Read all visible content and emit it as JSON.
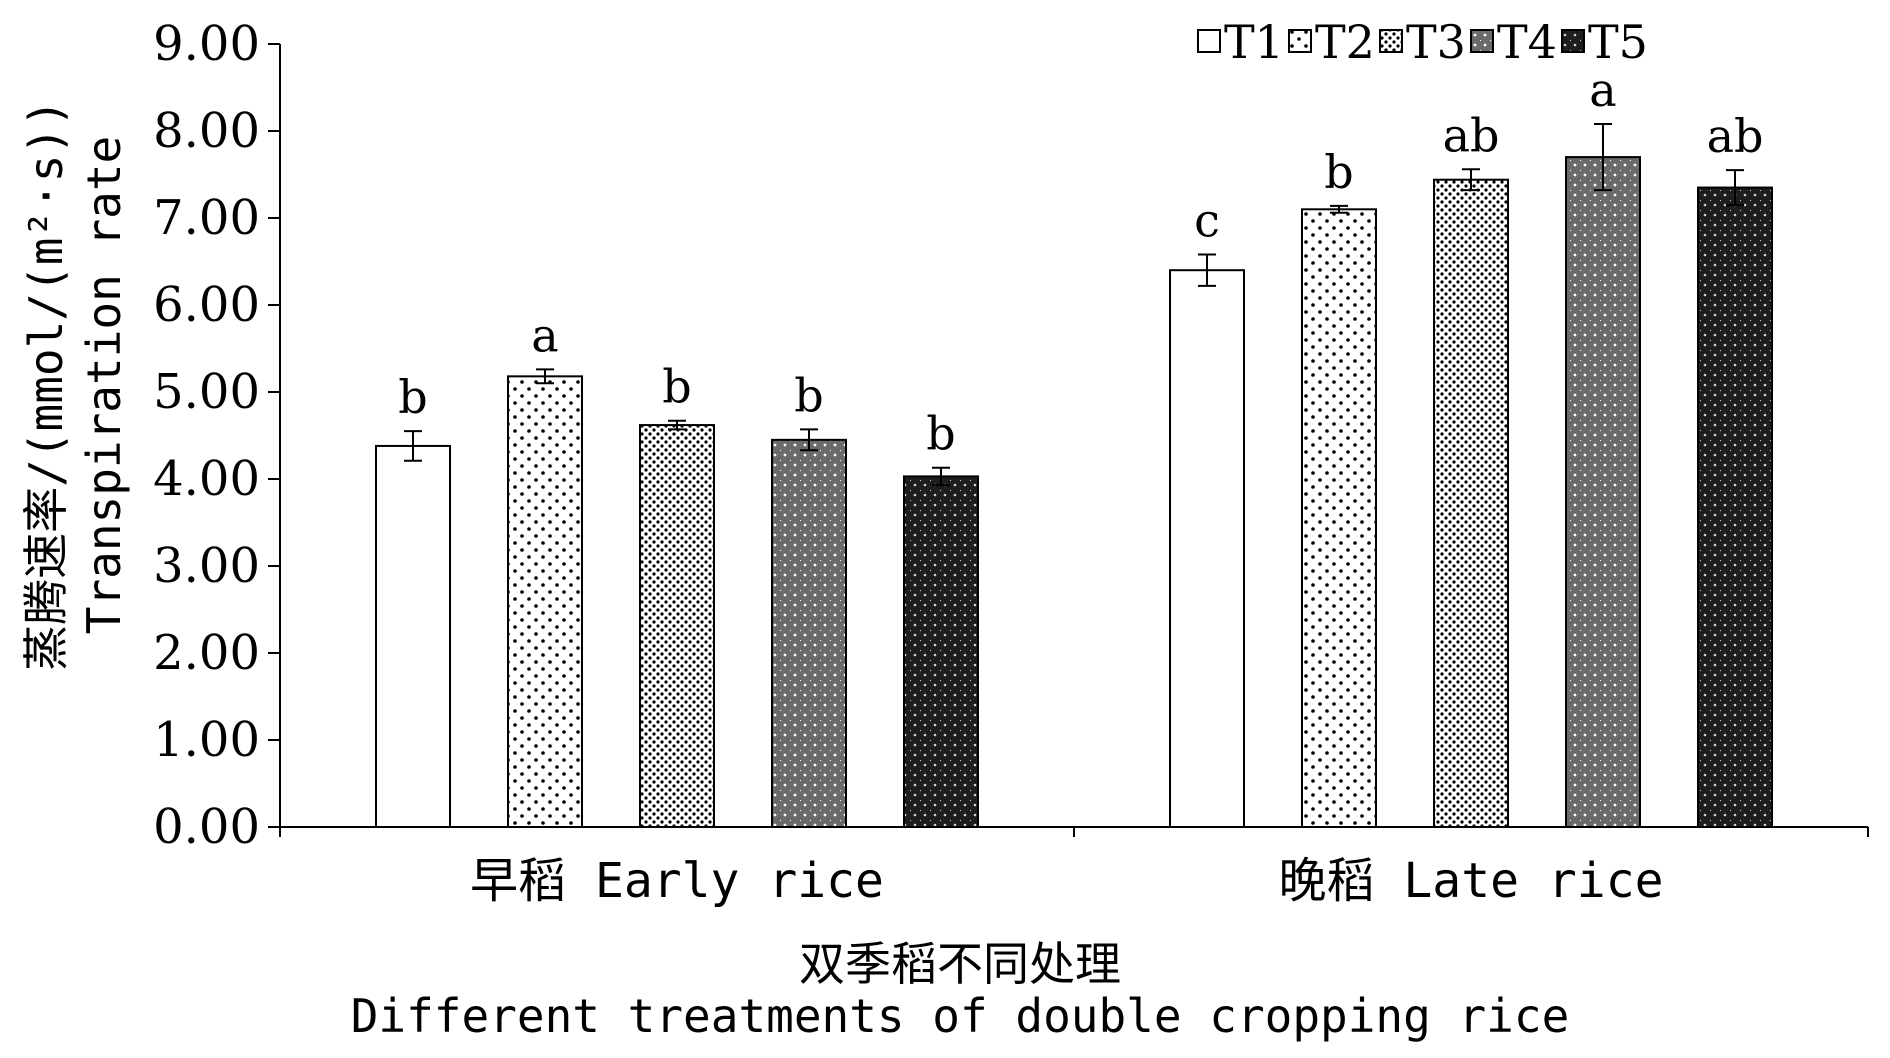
{
  "chart_data": {
    "type": "bar",
    "categories": [
      "早稻 Early rice",
      "晚稻 Late rice"
    ],
    "series": [
      {
        "name": "T1",
        "values": [
          4.38,
          6.4
        ],
        "errors": [
          0.17,
          0.18
        ],
        "labels": [
          "b",
          "c"
        ],
        "pattern": "empty",
        "color": "#ffffff"
      },
      {
        "name": "T2",
        "values": [
          5.18,
          7.1
        ],
        "errors": [
          0.08,
          0.04
        ],
        "labels": [
          "a",
          "b"
        ],
        "pattern": "sparse-dots",
        "color": "#ffffff"
      },
      {
        "name": "T3",
        "values": [
          4.62,
          7.44
        ],
        "errors": [
          0.05,
          0.12
        ],
        "labels": [
          "b",
          "ab"
        ],
        "pattern": "dense-dots",
        "color": "#ffffff"
      },
      {
        "name": "T4",
        "values": [
          4.45,
          7.7
        ],
        "errors": [
          0.12,
          0.38
        ],
        "labels": [
          "b",
          "a"
        ],
        "pattern": "dark-gray-white-dots",
        "color": "#6a6a6a"
      },
      {
        "name": "T5",
        "values": [
          4.03,
          7.35
        ],
        "errors": [
          0.1,
          0.2
        ],
        "labels": [
          "b",
          "ab"
        ],
        "pattern": "black-white-dots",
        "color": "#1e1e1e"
      }
    ],
    "ylabel_cn": "蒸腾速率/(mmol/(m²·s))",
    "ylabel_en": "Transpiration rate",
    "xlabel_cn": "双季稻不同处理",
    "xlabel_en": "Different treatments of double cropping rice",
    "ylim": [
      0,
      9
    ],
    "yticks": [
      "0.00",
      "1.00",
      "2.00",
      "3.00",
      "4.00",
      "5.00",
      "6.00",
      "7.00",
      "8.00",
      "9.00"
    ],
    "grid": false,
    "legend_position": "top-right"
  }
}
